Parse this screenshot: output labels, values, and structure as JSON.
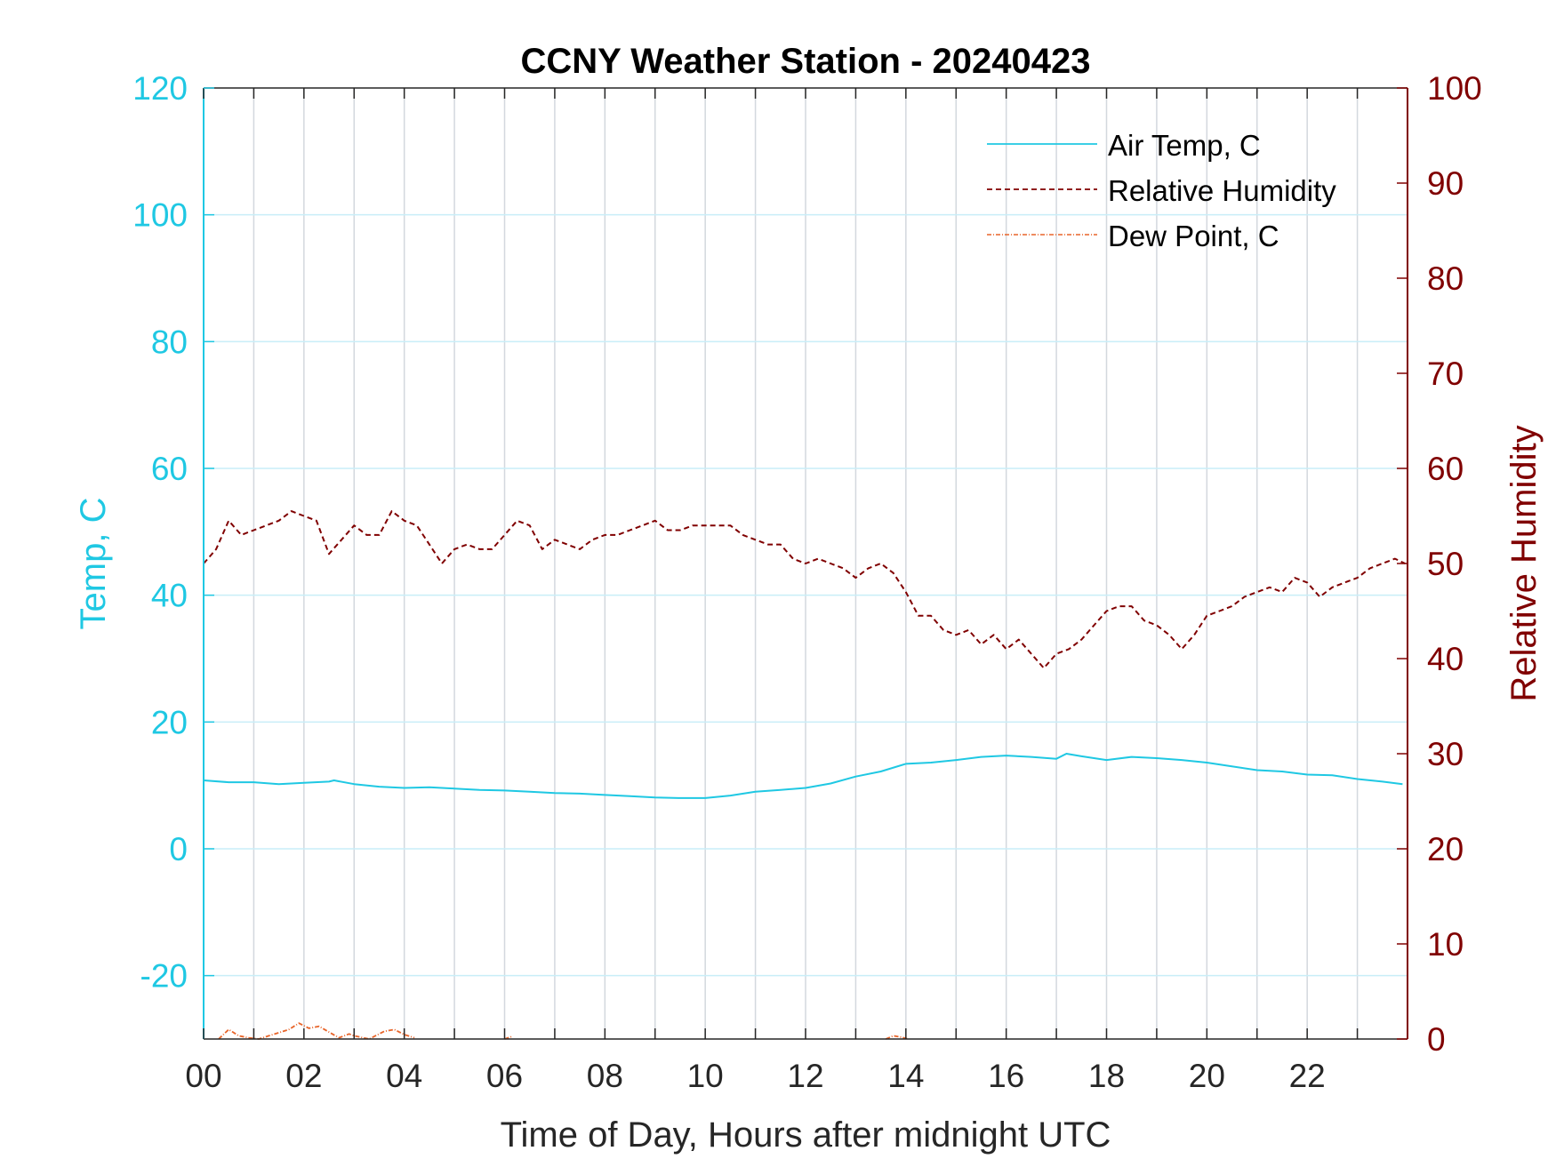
{
  "chart_data": {
    "type": "line",
    "title": "CCNY Weather Station - 20240423",
    "xlabel": "Time of Day, Hours after midnight UTC",
    "ylabel_left": "Temp, C",
    "ylabel_right": "Relative Humidity",
    "xlim": [
      0,
      24
    ],
    "ylim_left": [
      -30,
      120
    ],
    "ylim_right": [
      0,
      100
    ],
    "x_ticks": [
      0,
      2,
      4,
      6,
      8,
      10,
      12,
      14,
      16,
      18,
      20,
      22
    ],
    "x_tick_labels": [
      "00",
      "02",
      "04",
      "06",
      "08",
      "10",
      "12",
      "14",
      "16",
      "18",
      "20",
      "22"
    ],
    "y_left_ticks": [
      120,
      100,
      80,
      60,
      40,
      20,
      0,
      -20
    ],
    "y_left_tick_labels": [
      "120",
      "100",
      "80",
      "60",
      "40",
      "20",
      "0",
      "-20"
    ],
    "y_right_ticks": [
      100,
      90,
      80,
      70,
      60,
      50,
      40,
      30,
      20,
      10,
      0
    ],
    "y_right_tick_labels": [
      "100",
      "90",
      "80",
      "70",
      "60",
      "50",
      "40",
      "30",
      "20",
      "10",
      "0"
    ],
    "grid": true,
    "legend_placement": "top-right",
    "colors": {
      "left_axis": "#1fc8e3",
      "right_axis": "#800000",
      "temp": "#1fc8e3",
      "rh": "#800000",
      "dew": "#e8652a",
      "grid_h": "#c9eef8",
      "grid_v": "#d3d8de"
    },
    "series": [
      {
        "name": "Air Temp, C",
        "axis": "left",
        "style": "solid",
        "x": [
          0,
          0.5,
          1,
          1.5,
          2,
          2.5,
          2.6,
          3,
          3.5,
          4,
          4.5,
          5,
          5.5,
          6,
          6.5,
          7,
          7.5,
          8,
          8.5,
          9,
          9.5,
          10,
          10.5,
          11,
          11.5,
          12,
          12.5,
          13,
          13.5,
          14,
          14.5,
          15,
          15.5,
          16,
          16.5,
          17,
          17.2,
          17.5,
          18,
          18.5,
          19,
          19.5,
          20,
          20.5,
          21,
          21.5,
          22,
          22.5,
          23,
          23.5,
          23.9
        ],
        "values": [
          10.8,
          10.5,
          10.5,
          10.2,
          10.4,
          10.6,
          10.8,
          10.2,
          9.8,
          9.6,
          9.7,
          9.5,
          9.3,
          9.2,
          9.0,
          8.8,
          8.7,
          8.5,
          8.3,
          8.1,
          8.0,
          8.0,
          8.4,
          9.0,
          9.3,
          9.6,
          10.3,
          11.4,
          12.2,
          13.4,
          13.6,
          14.0,
          14.5,
          14.7,
          14.5,
          14.2,
          15.0,
          14.6,
          14.0,
          14.5,
          14.3,
          14.0,
          13.6,
          13.0,
          12.4,
          12.2,
          11.7,
          11.6,
          11.0,
          10.6,
          10.2
        ]
      },
      {
        "name": "Relative Humidity",
        "axis": "right",
        "style": "dashed",
        "x": [
          0,
          0.25,
          0.5,
          0.75,
          1,
          1.25,
          1.5,
          1.75,
          2,
          2.25,
          2.5,
          2.75,
          3,
          3.25,
          3.5,
          3.75,
          4,
          4.25,
          4.5,
          4.75,
          5,
          5.25,
          5.5,
          5.75,
          6,
          6.25,
          6.5,
          6.75,
          7,
          7.25,
          7.5,
          7.75,
          8,
          8.25,
          8.5,
          8.75,
          9,
          9.25,
          9.5,
          9.75,
          10,
          10.25,
          10.5,
          10.75,
          11,
          11.25,
          11.5,
          11.75,
          12,
          12.25,
          12.5,
          12.75,
          13,
          13.25,
          13.5,
          13.75,
          14,
          14.25,
          14.5,
          14.75,
          15,
          15.25,
          15.5,
          15.75,
          16,
          16.25,
          16.5,
          16.75,
          17,
          17.25,
          17.5,
          17.75,
          18,
          18.25,
          18.5,
          18.75,
          19,
          19.25,
          19.5,
          19.75,
          20,
          20.25,
          20.5,
          20.75,
          21,
          21.25,
          21.5,
          21.75,
          22,
          22.25,
          22.5,
          22.75,
          23,
          23.25,
          23.5,
          23.75,
          23.95
        ],
        "values": [
          50,
          51.5,
          54.5,
          53,
          53.5,
          54,
          54.5,
          55.5,
          55,
          54.5,
          51,
          52.5,
          54,
          53,
          53,
          55.5,
          54.5,
          54,
          52,
          50,
          51.5,
          52,
          51.5,
          51.5,
          53,
          54.5,
          54,
          51.5,
          52.5,
          52,
          51.5,
          52.5,
          53,
          53,
          53.5,
          54,
          54.5,
          53.5,
          53.5,
          54,
          54,
          54,
          54,
          53,
          52.5,
          52,
          52,
          50.5,
          50,
          50.5,
          50,
          49.5,
          48.5,
          49.5,
          50,
          49,
          47,
          44.5,
          44.5,
          43,
          42.5,
          43,
          41.5,
          42.5,
          41,
          42,
          40.5,
          39,
          40.5,
          41,
          42,
          43.5,
          45,
          45.5,
          45.5,
          44,
          43.5,
          42.5,
          41,
          42.5,
          44.5,
          45,
          45.5,
          46.5,
          47,
          47.5,
          47,
          48.5,
          48,
          46.5,
          47.5,
          48,
          48.5,
          49.5,
          50,
          50.5,
          50
        ]
      },
      {
        "name": "Dew Point, C",
        "axis": "left",
        "style": "dashdot",
        "segments": [
          {
            "x": [
              0.3,
              0.5,
              0.7,
              0.9,
              1.1,
              1.3,
              1.5,
              1.7,
              1.9,
              2.1,
              2.3,
              2.5,
              2.7,
              2.9,
              3.0,
              3.3,
              3.6,
              3.8,
              4.0,
              4.2
            ],
            "values": [
              -30,
              -28.5,
              -29.5,
              -29.8,
              -30,
              -29.5,
              -29,
              -28.5,
              -27.5,
              -28.3,
              -28,
              -28.9,
              -29.8,
              -29.2,
              -29.5,
              -30,
              -28.8,
              -28.5,
              -29.3,
              -29.8
            ]
          },
          {
            "x": [
              6.0,
              6.15
            ],
            "values": [
              -30,
              -29.6
            ]
          },
          {
            "x": [
              13.6,
              13.75,
              13.9,
              14.05
            ],
            "values": [
              -30,
              -29.5,
              -29.7,
              -30
            ]
          }
        ]
      }
    ]
  }
}
